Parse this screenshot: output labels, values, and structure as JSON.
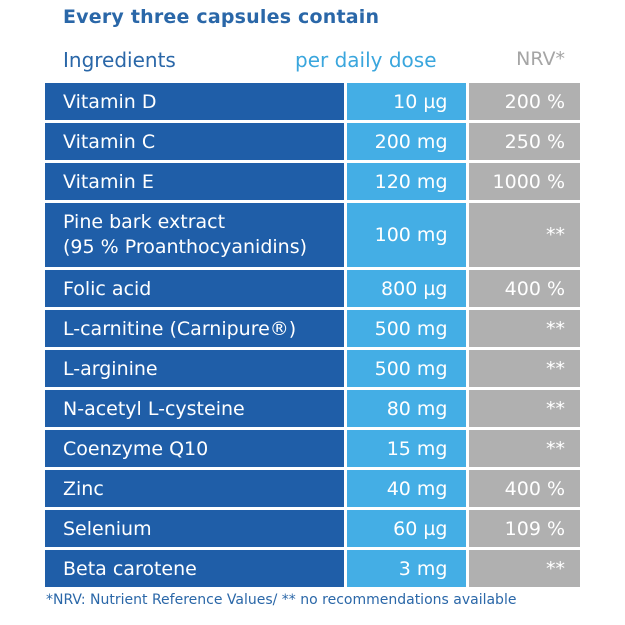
{
  "title": "Every three capsules contain",
  "headers": {
    "ingredients": "Ingredients",
    "dose": "per daily dose",
    "nrv": "NRV*"
  },
  "rows": [
    {
      "ingredient": "Vitamin D",
      "dose": "10 µg",
      "nrv": "200 %"
    },
    {
      "ingredient": "Vitamin C",
      "dose": "200 mg",
      "nrv": "250 %"
    },
    {
      "ingredient": "Vitamin E",
      "dose": "120 mg",
      "nrv": "1000 %"
    },
    {
      "ingredient": "Pine bark extract",
      "ingredient_line2": "(95 % Proanthocyanidins)",
      "dose": "100 mg",
      "nrv": "**"
    },
    {
      "ingredient": "Folic acid",
      "dose": "800 µg",
      "nrv": "400 %"
    },
    {
      "ingredient": "L-carnitine (Carnipure®)",
      "dose": "500 mg",
      "nrv": "**"
    },
    {
      "ingredient": "L-arginine",
      "dose": "500 mg",
      "nrv": "**"
    },
    {
      "ingredient": "N-acetyl L-cysteine",
      "dose": "80 mg",
      "nrv": "**"
    },
    {
      "ingredient": "Coenzyme Q10",
      "dose": "15 mg",
      "nrv": "**"
    },
    {
      "ingredient": "Zinc",
      "dose": "40 mg",
      "nrv": "400 %"
    },
    {
      "ingredient": "Selenium",
      "dose": "60 µg",
      "nrv": "109 %"
    },
    {
      "ingredient": "Beta carotene",
      "dose": "3 mg",
      "nrv": "**"
    }
  ],
  "footnote": "*NRV: Nutrient Reference Values/ ** no recommendations available",
  "colors": {
    "ingredient_col": "#1f5ea8",
    "dose_col": "#44aee5",
    "nrv_col": "#b0b0b0",
    "title": "#2a67a8"
  }
}
